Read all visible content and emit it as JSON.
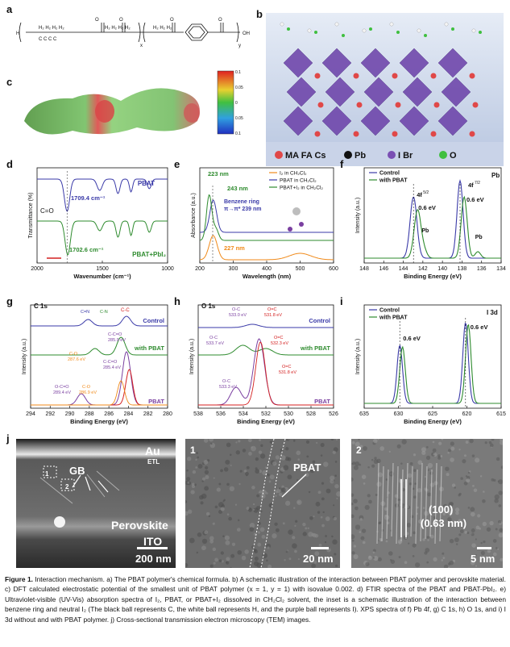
{
  "panels": {
    "a": {
      "letter": "a",
      "formula_sub_x": "x",
      "formula_sub_y": "y",
      "end_h": "H",
      "end_oh": "OH"
    },
    "b": {
      "letter": "b",
      "legend": [
        {
          "label": "MA FA Cs",
          "color": "#e04848"
        },
        {
          "label": "Pb",
          "color": "#111111"
        },
        {
          "label": "I Br",
          "color": "#7a4fb3"
        },
        {
          "label": "O",
          "color": "#3fbf3f"
        }
      ]
    },
    "c": {
      "letter": "c",
      "scale_ticks": [
        "0.1",
        "0.05",
        "0",
        "0.05",
        "0.1"
      ]
    },
    "d": {
      "letter": "d",
      "ylabel": "Transmittance (%)",
      "xlabel": "Wavenumber (cm⁻¹)",
      "xticks": [
        "2000",
        "1500",
        "1000"
      ],
      "series": [
        "PBAT",
        "PBAT+PbI₂"
      ],
      "annotations": {
        "co": "C=O",
        "peak1": "1709.4 cm⁻¹",
        "peak2": "1702.6 cm⁻¹"
      }
    },
    "e": {
      "letter": "e",
      "ylabel": "Absorbance (a.u.)",
      "xlabel": "Wavelength (nm)",
      "xticks": [
        "200",
        "300",
        "400",
        "500",
        "600"
      ],
      "legend": [
        "I₂ in CH₂Cl₂",
        "PBAT in CH₂Cl₂",
        "PBAT+I₂ in CH₂Cl₂"
      ],
      "annotations": {
        "a223": "223 nm",
        "a243": "243 nm",
        "ring": "Benzene ring",
        "ring2": "π→π* 239 nm",
        "a227": "227 nm"
      }
    },
    "f": {
      "letter": "f",
      "ylabel": "Intensity (a.u.)",
      "xlabel": "Binding Energy (eV)",
      "xticks": [
        "148",
        "146",
        "144",
        "142",
        "140",
        "138",
        "136",
        "134"
      ],
      "legend": [
        "Control",
        "with PBAT"
      ],
      "element": "Pb",
      "annotations": {
        "f52": "4f",
        "f52s": "5/2",
        "f72": "4f",
        "f72s": "7/2",
        "ev1": "0.6 eV",
        "ev2": "0.6 eV",
        "pb0a": "Pb",
        "pb0b": "Pb"
      }
    },
    "g": {
      "letter": "g",
      "title": "C 1s",
      "ylabel": "Intensity (a.u.)",
      "xlabel": "Binding Energy (eV)",
      "xticks": [
        "294",
        "292",
        "290",
        "288",
        "286",
        "284",
        "282",
        "280"
      ],
      "labels": {
        "control": "Control",
        "withpbat": "with PBAT",
        "pbat": "PBAT",
        "cn1": "C=N",
        "cn2": "C-N",
        "cc1": "C-C",
        "cco1": "C-C=O",
        "cco1v": "285.9 eV",
        "co1": "C-O",
        "co1v": "287.6 eV",
        "cco2": "C-C=O",
        "cco2v": "285.4 eV",
        "occo": "O-C=O",
        "occov": "289.4 eV",
        "co2": "C-O",
        "co2v": "286.9 eV"
      }
    },
    "h": {
      "letter": "h",
      "title": "O 1s",
      "ylabel": "Intensity (a.u.)",
      "xlabel": "Binding Energy (eV)",
      "xticks": [
        "538",
        "536",
        "534",
        "532",
        "530",
        "528",
        "526"
      ],
      "labels": {
        "control": "Control",
        "withpbat": "with PBAT",
        "pbat": "PBAT",
        "oc1": "O-C",
        "oc1v": "533.0 eV",
        "oeq1": "O=C",
        "oeq1v": "531.8 eV",
        "oc2": "O-C",
        "oc2v": "533.7 eV",
        "oeq2": "O=C",
        "oeq2v": "532.3 eV",
        "oc3": "O-C",
        "oc3v": "533.3 eV",
        "oeq3": "O=C",
        "oeq3v": "531.8 eV"
      }
    },
    "i": {
      "letter": "i",
      "title": "I 3d",
      "ylabel": "Intensity (a.u.)",
      "xlabel": "Binding Energy (eV)",
      "xticks": [
        "635",
        "630",
        "625",
        "620",
        "615"
      ],
      "legend": [
        "Control",
        "with PBAT"
      ],
      "annotations": {
        "ev1": "0.6 eV",
        "ev2": "0.6 eV"
      }
    },
    "j": {
      "letter": "j",
      "img1": {
        "au": "Au",
        "etl": "ETL",
        "gb": "GB",
        "b1": "1",
        "b2": "2",
        "pero": "Perovskite",
        "ito": "ITO",
        "scale": "200 nm"
      },
      "img2": {
        "num": "1",
        "pbat": "PBAT",
        "scale": "20 nm"
      },
      "img3": {
        "num": "2",
        "plane": "(100)",
        "spacing": "(0.63 nm)",
        "scale": "5 nm"
      }
    }
  },
  "colors": {
    "control": "#3a3aa8",
    "pbat": "#2e8b2e",
    "i2": "#f08a1a",
    "purple": "#7a3fa0",
    "red": "#d42020"
  },
  "caption": {
    "label": "Figure 1.",
    "text": "Interaction mechanism. a) The PBAT polymer's chemical formula. b) A schematic illustration of the interaction between PBAT polymer and perovskite material. c) DFT calculated electrostatic potential of the smallest unit of PBAT polymer (x = 1, y = 1) with isovalue 0.002. d) FTIR spectra of the PBAT and PBAT-PbI₂. e) Ultraviolet-visible (UV-Vis) absorption spectra of I₂, PBAT, or PBAT+I₂ dissolved in CH₂Cl₂ solvent, the inset is a schematic illustration of the interaction between benzene ring and neutral I₂ (The black ball represents C, the white ball represents H, and the purple ball represents I). XPS spectra of f) Pb 4f, g) C 1s, h) O 1s, and i) I 3d without and with PBAT polymer. j) Cross-sectional transmission electron microscopy (TEM) images."
  }
}
